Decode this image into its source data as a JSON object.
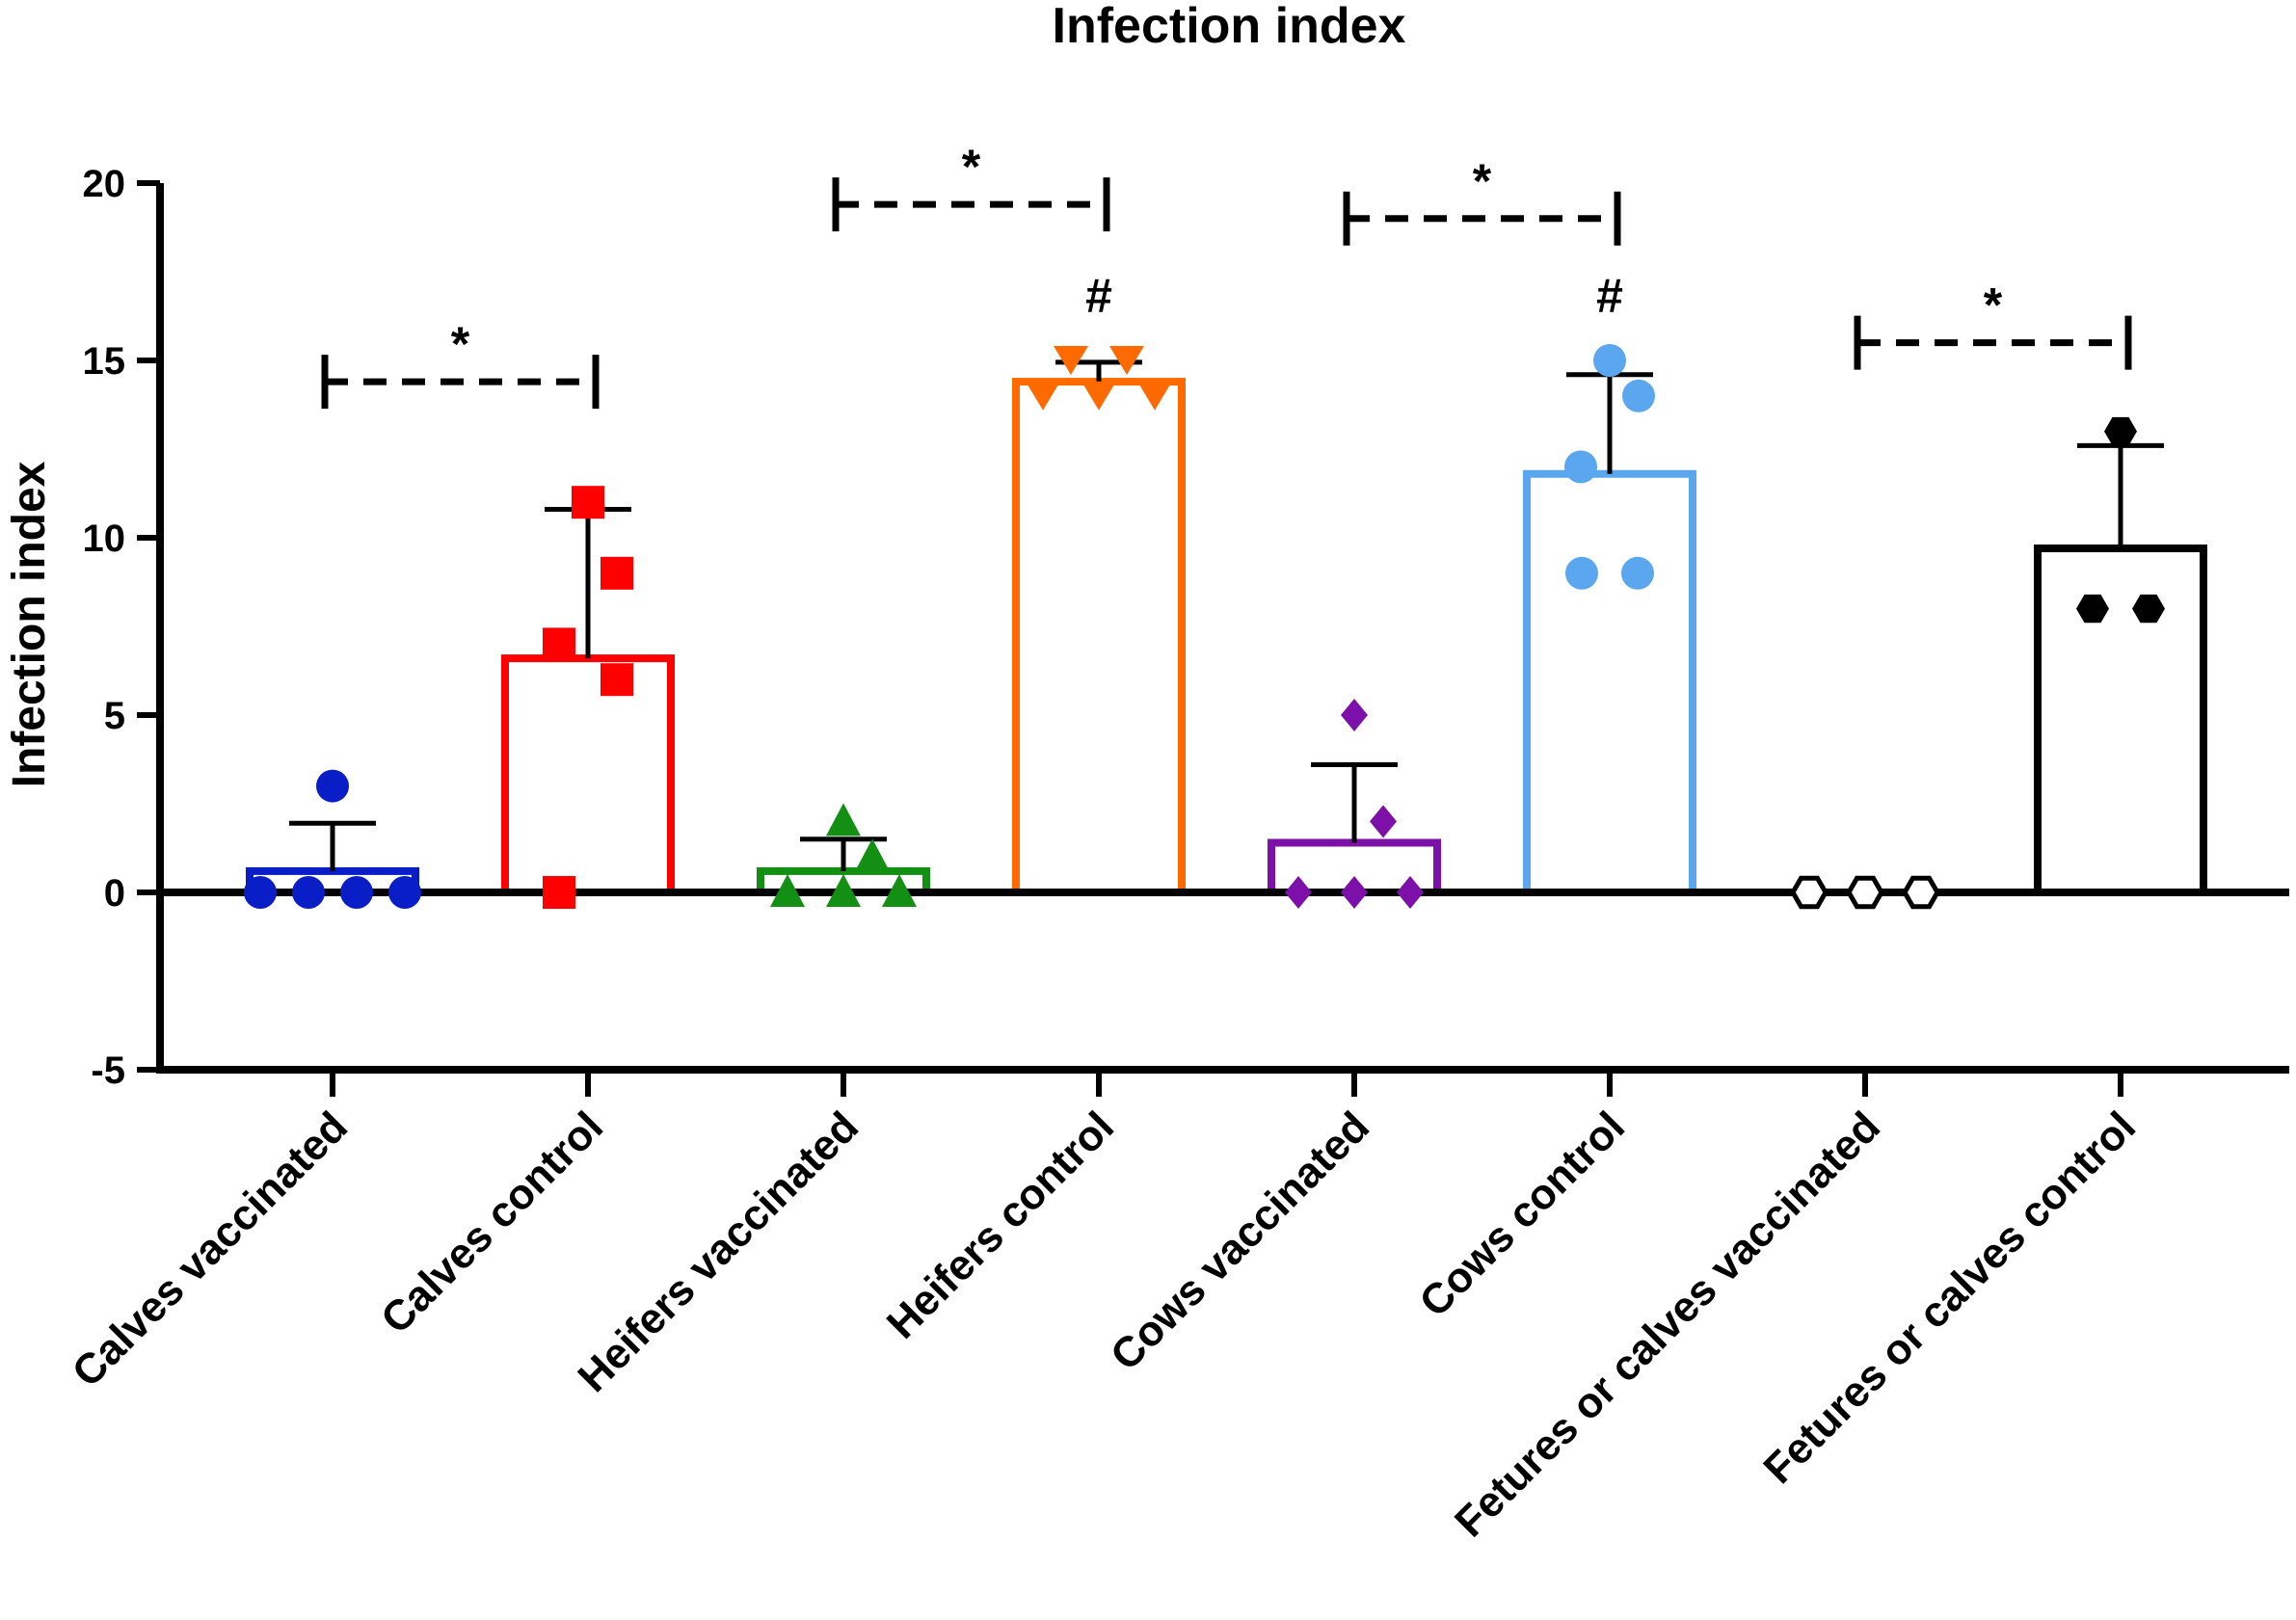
{
  "chart_data": {
    "type": "bar",
    "title": "Infection index",
    "xlabel": "",
    "ylabel": "Infection index",
    "ylim": [
      -5,
      20
    ],
    "yticks": [
      "20",
      "15",
      "10",
      "5",
      "0",
      "-5"
    ],
    "categories": [
      "Calves vaccinated",
      "Calves control",
      "Heifers vaccinated",
      "Heifers control",
      "Cows vaccinated",
      "Cows control",
      "Fetures or calves vaccinated",
      "Fetures or calves control"
    ],
    "means": [
      0.6,
      6.6,
      0.6,
      14.4,
      1.4,
      11.8,
      0,
      9.7
    ],
    "error_upper": [
      1.95,
      10.8,
      1.5,
      14.95,
      3.6,
      14.6,
      0,
      12.6
    ],
    "colors": [
      "#0a1ec8",
      "#ff0000",
      "#138f13",
      "#ff6a00",
      "#7d10a8",
      "#5aa7f0",
      "#000000",
      "#000000"
    ],
    "markers": [
      "circle",
      "square",
      "triangle-up",
      "triangle-down",
      "diamond",
      "circle",
      "hexagon-open",
      "hexagon"
    ],
    "points": [
      [
        3,
        0,
        0,
        0,
        0
      ],
      [
        11,
        9,
        7,
        6,
        0
      ],
      [
        2,
        1,
        0,
        0,
        0
      ],
      [
        15,
        15,
        14,
        14,
        14
      ],
      [
        5,
        2,
        0,
        0,
        0
      ],
      [
        15,
        14,
        12,
        9,
        9
      ],
      [
        0,
        0,
        0
      ],
      [
        13,
        8,
        8
      ]
    ],
    "comparisons": [
      {
        "pair": [
          0,
          1
        ],
        "label": "*",
        "y": 14.4
      },
      {
        "pair": [
          2,
          3
        ],
        "label": "*",
        "y": 19.4
      },
      {
        "pair": [
          4,
          5
        ],
        "label": "*",
        "y": 19.0
      },
      {
        "pair": [
          6,
          7
        ],
        "label": "*",
        "y": 15.5
      }
    ],
    "markers_above": [
      {
        "index": 3,
        "label": "#"
      },
      {
        "index": 5,
        "label": "#"
      }
    ]
  }
}
